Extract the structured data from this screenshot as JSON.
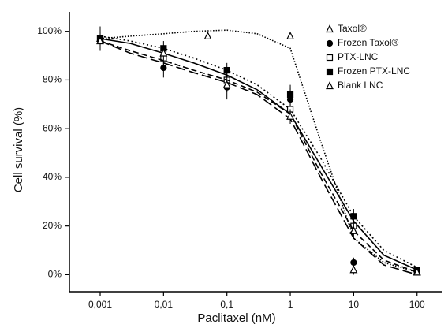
{
  "chart_data": {
    "type": "dose-response",
    "x_label": "Paclitaxel (nM)",
    "y_label": "Cell survival (%)",
    "x_scale": "log",
    "xlim": [
      0.000327,
      245
    ],
    "ylim": [
      -7,
      108
    ],
    "xticks": [
      {
        "value": 0.001,
        "label": "0,001"
      },
      {
        "value": 0.01,
        "label": "0,01"
      },
      {
        "value": 0.1,
        "label": "0,1"
      },
      1,
      10,
      100
    ],
    "yticks": [
      {
        "value": 0,
        "label": "0%"
      },
      {
        "value": 20,
        "label": "20%"
      },
      {
        "value": 40,
        "label": "40%"
      },
      {
        "value": 60,
        "label": "60%"
      },
      {
        "value": 80,
        "label": "80%"
      },
      {
        "value": 100,
        "label": "100%"
      }
    ],
    "legend": "top-right",
    "fit_x": [
      0.001,
      0.003,
      0.01,
      0.03,
      0.1,
      0.3,
      1,
      3,
      10,
      30,
      100
    ],
    "series": [
      {
        "name": "Taxol®",
        "color": "#000000",
        "marker": "open-triangle",
        "line_style": "dotted-fine",
        "x": [
          0.001,
          0.05,
          1,
          10,
          100
        ],
        "values": [
          97,
          98,
          98,
          2,
          1
        ],
        "errors": [
          3,
          1,
          1,
          2,
          1
        ],
        "fit_values": [
          97,
          98,
          99,
          100,
          100.5,
          99,
          93,
          55,
          15,
          5,
          1
        ]
      },
      {
        "name": "Frozen Taxol®",
        "color": "#000000",
        "marker": "filled-circle",
        "line_style": "solid",
        "x": [
          0.001,
          0.01,
          0.1,
          1,
          10,
          100
        ],
        "values": [
          96,
          85,
          77,
          72,
          5,
          2
        ],
        "errors": [
          4,
          4,
          5,
          5,
          2,
          1
        ],
        "fit_values": [
          97,
          95,
          91,
          87,
          82,
          76,
          66,
          45,
          22,
          8,
          2
        ]
      },
      {
        "name": "PTX-LNC",
        "color": "#000000",
        "marker": "open-square",
        "line_style": "dotted",
        "x": [
          0.001,
          0.01,
          0.1,
          1,
          10,
          100
        ],
        "values": [
          97,
          89,
          80,
          68,
          20,
          1
        ],
        "errors": [
          5,
          3,
          4,
          4,
          3,
          1
        ],
        "fit_values": [
          98,
          96,
          93,
          89,
          84,
          78,
          68,
          48,
          24,
          10,
          3
        ]
      },
      {
        "name": "Frozen PTX-LNC",
        "color": "#000000",
        "marker": "filled-square",
        "line_style": "dashed",
        "x": [
          0.001,
          0.01,
          0.1,
          1,
          10,
          100
        ],
        "values": [
          97,
          93,
          84,
          74,
          24,
          2
        ],
        "errors": [
          3,
          3,
          3,
          4,
          3,
          1
        ],
        "fit_values": [
          96,
          92,
          88,
          84,
          80,
          75,
          66,
          42,
          18,
          6,
          1
        ]
      },
      {
        "name": "Blank LNC",
        "color": "#000000",
        "marker": "open-triangle",
        "line_style": "long-dashed",
        "x": [
          0.001,
          0.01,
          0.1,
          1,
          10,
          100
        ],
        "values": [
          96,
          91,
          78,
          65,
          18,
          1
        ],
        "errors": [
          4,
          3,
          3,
          3,
          3,
          1
        ],
        "fit_values": [
          96,
          91,
          87,
          83,
          79,
          74,
          64,
          40,
          15,
          4,
          0
        ]
      }
    ]
  }
}
